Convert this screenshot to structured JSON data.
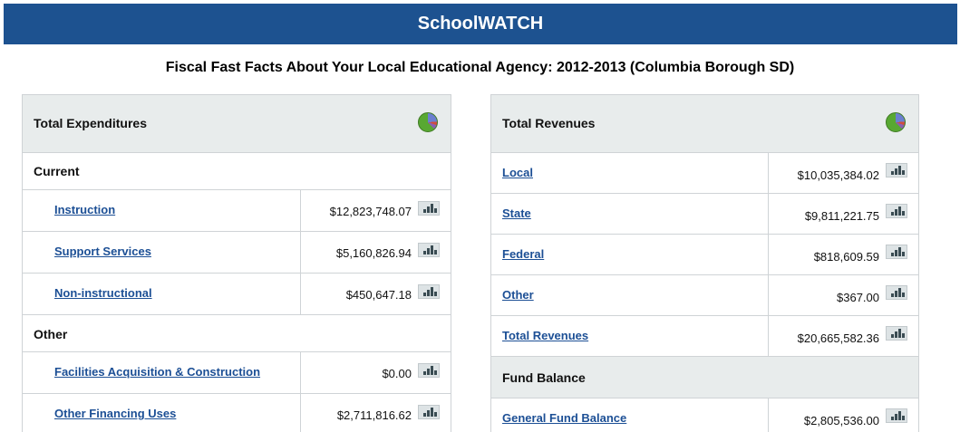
{
  "app_title": "SchoolWATCH",
  "subtitle": "Fiscal Fast Facts About Your Local Educational Agency: 2012-2013 (Columbia Borough SD)",
  "expenditures": {
    "title": "Total Expenditures",
    "sections": [
      {
        "label": "Current",
        "items": [
          {
            "label": "Instruction",
            "amount": "$12,823,748.07"
          },
          {
            "label": "Support Services",
            "amount": "$5,160,826.94"
          },
          {
            "label": "Non-instructional",
            "amount": "$450,647.18"
          }
        ]
      },
      {
        "label": "Other",
        "items": [
          {
            "label": "Facilities Acquisition & Construction",
            "amount": "$0.00"
          },
          {
            "label": "Other Financing Uses",
            "amount": "$2,711,816.62"
          }
        ]
      }
    ]
  },
  "revenues": {
    "title": "Total Revenues",
    "items": [
      {
        "label": "Local",
        "amount": "$10,035,384.02"
      },
      {
        "label": "State",
        "amount": "$9,811,221.75"
      },
      {
        "label": "Federal",
        "amount": "$818,609.59"
      },
      {
        "label": "Other",
        "amount": "$367.00"
      },
      {
        "label": "Total Revenues",
        "amount": "$20,665,582.36"
      }
    ],
    "fund_balance": {
      "label": "Fund Balance",
      "items": [
        {
          "label": "General Fund Balance",
          "amount": "$2,805,536.00"
        }
      ]
    }
  },
  "icons": {
    "pie": "pie-chart-icon",
    "bar": "bar-chart-icon"
  },
  "colors": {
    "banner": "#1d5290",
    "link": "#1c4f95",
    "header_bg": "#e8ecec"
  }
}
